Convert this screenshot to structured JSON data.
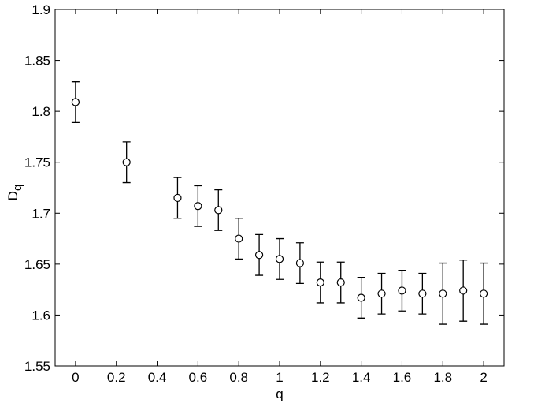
{
  "chart_data": {
    "type": "errorbar",
    "xlabel": "q",
    "ylabel": {
      "main": "D",
      "sub": "q"
    },
    "x": [
      0,
      0.25,
      0.5,
      0.6,
      0.7,
      0.8,
      0.9,
      1.0,
      1.1,
      1.2,
      1.3,
      1.4,
      1.5,
      1.6,
      1.7,
      1.8,
      1.9,
      2.0
    ],
    "values": [
      1.809,
      1.75,
      1.715,
      1.707,
      1.703,
      1.675,
      1.659,
      1.655,
      1.651,
      1.632,
      1.632,
      1.617,
      1.621,
      1.624,
      1.621,
      1.621,
      1.624,
      1.621
    ],
    "errors": [
      0.02,
      0.02,
      0.02,
      0.02,
      0.02,
      0.02,
      0.02,
      0.02,
      0.02,
      0.02,
      0.02,
      0.02,
      0.02,
      0.02,
      0.02,
      0.03,
      0.03,
      0.03
    ],
    "color": "#000000",
    "xlim": [
      -0.1,
      2.1
    ],
    "xticks": [
      0,
      0.2,
      0.4,
      0.6,
      0.8,
      1,
      1.2,
      1.4,
      1.6,
      1.8,
      2
    ],
    "ylim": [
      1.55,
      1.9
    ],
    "yticks": [
      1.55,
      1.6,
      1.65,
      1.7,
      1.75,
      1.8,
      1.85,
      1.9
    ],
    "grid": false
  }
}
